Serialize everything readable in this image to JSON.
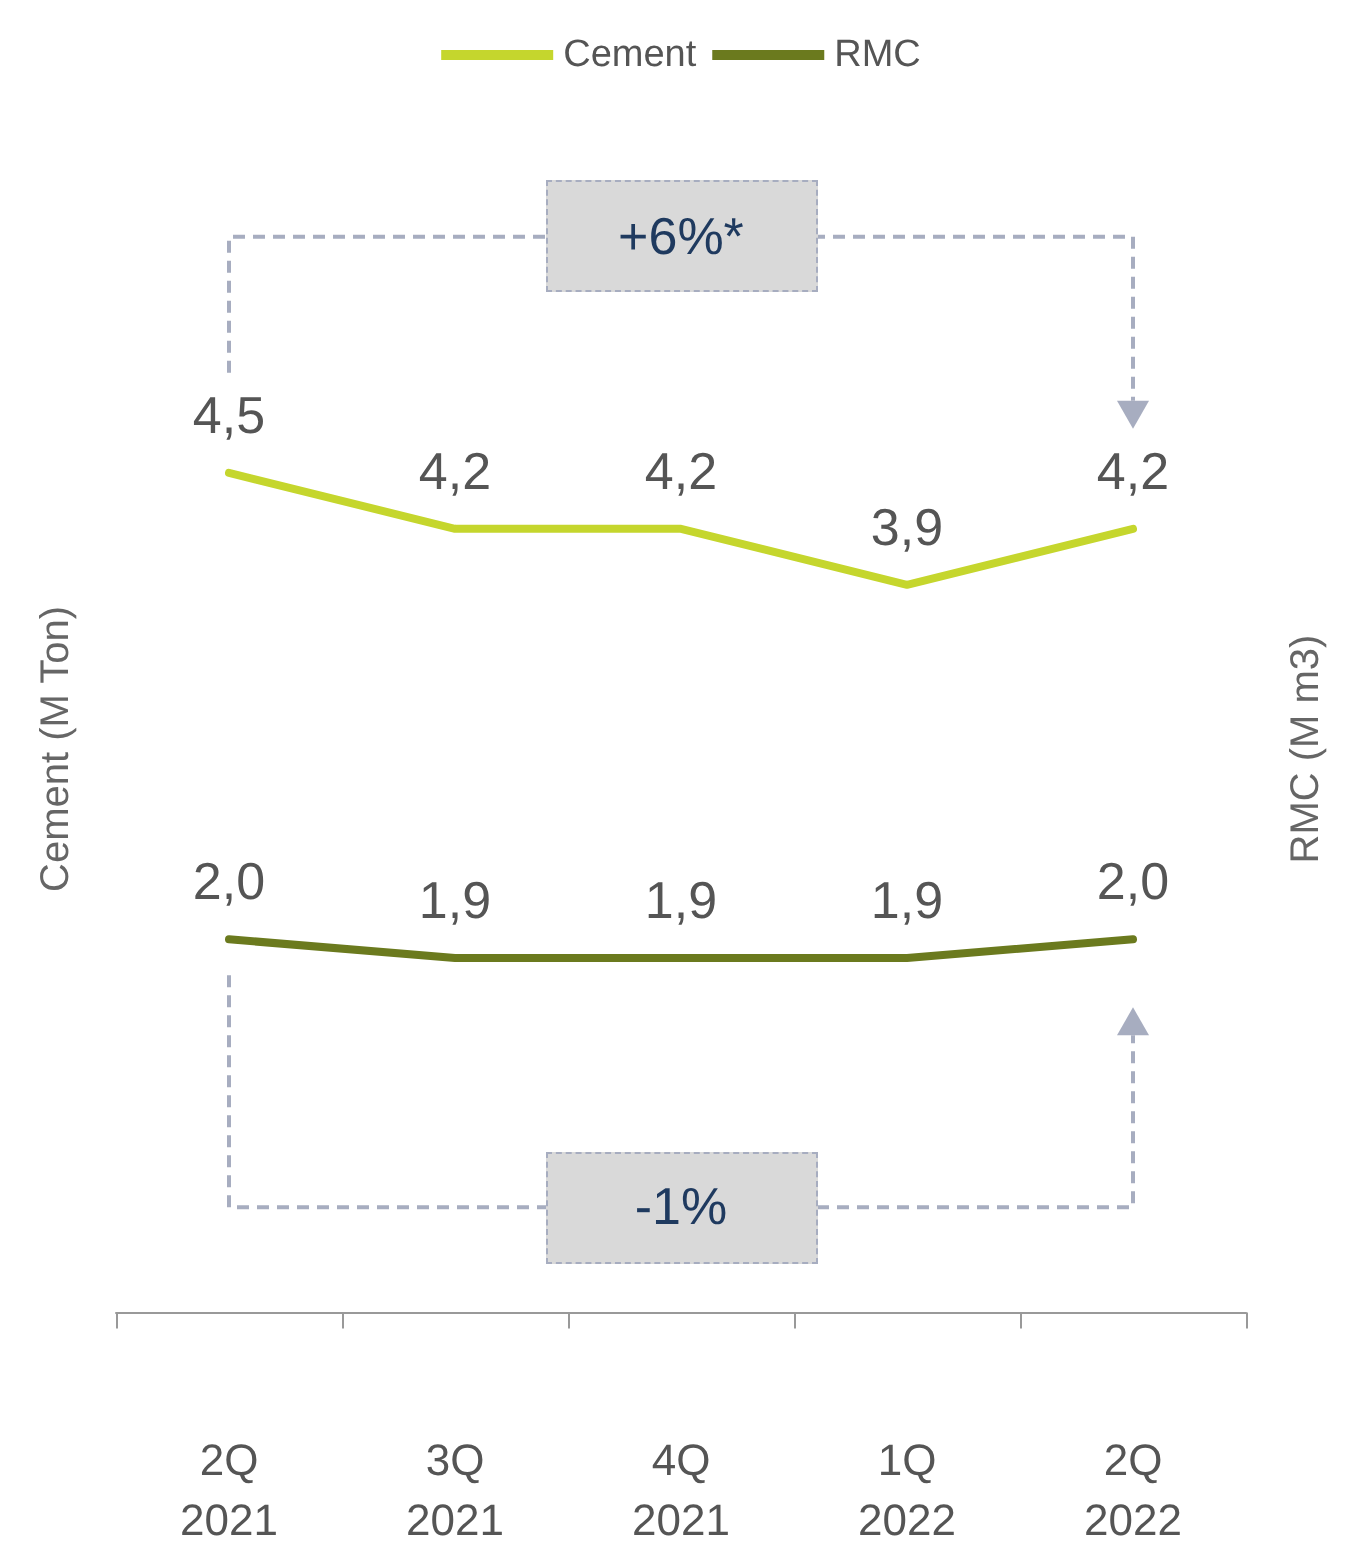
{
  "chart_data": {
    "type": "line",
    "categories": [
      "2Q\n2021",
      "3Q\n2021",
      "4Q\n2021",
      "1Q\n2022",
      "2Q\n2022"
    ],
    "series": [
      {
        "name": "Cement",
        "color": "#c5d62d",
        "values": [
          4.5,
          4.2,
          4.2,
          3.9,
          4.2
        ],
        "value_labels": [
          "4,5",
          "4,2",
          "4,2",
          "3,9",
          "4,2"
        ]
      },
      {
        "name": "RMC",
        "color": "#6b7a1e",
        "values": [
          2.0,
          1.9,
          1.9,
          1.9,
          2.0
        ],
        "value_labels": [
          "2,0",
          "1,9",
          "1,9",
          "1,9",
          "2,0"
        ]
      }
    ],
    "ylabel": "Cement (M Ton)",
    "y2label": "RMC (M m3)",
    "annotations": [
      "+6%*",
      "-1%"
    ],
    "legend": "top",
    "grid": false,
    "marker": "none",
    "line_style": "solid",
    "tick_labels": "x"
  }
}
